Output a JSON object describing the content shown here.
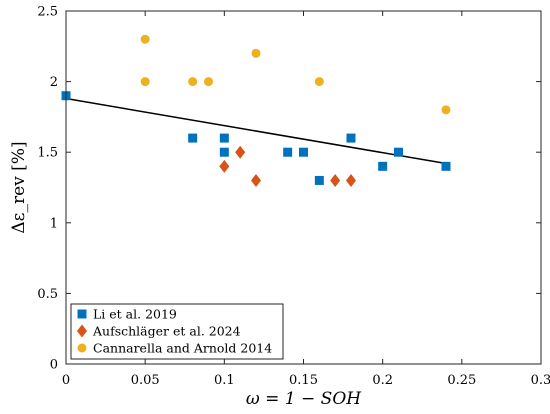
{
  "chart_data": {
    "type": "scatter",
    "xlabel": "ω = 1 − SOH",
    "ylabel": "Δε_rev [%]",
    "xlim": [
      0,
      0.3
    ],
    "ylim": [
      0,
      2.5
    ],
    "xticks": [
      0,
      0.05,
      0.1,
      0.15,
      0.2,
      0.25,
      0.3
    ],
    "xtick_labels": [
      "0",
      "0.05",
      "0.1",
      "0.15",
      "0.2",
      "0.25",
      "0.3"
    ],
    "yticks": [
      0,
      0.5,
      1,
      1.5,
      2,
      2.5
    ],
    "ytick_labels": [
      "0",
      "0.5",
      "1",
      "1.5",
      "2",
      "2.5"
    ],
    "grid": false,
    "legend_position": "bottom-left",
    "series": [
      {
        "name": "Li et al. 2019",
        "marker": "square",
        "color": "#0072BD",
        "x": [
          0,
          0.08,
          0.1,
          0.1,
          0.14,
          0.15,
          0.16,
          0.18,
          0.2,
          0.21,
          0.24
        ],
        "y": [
          1.9,
          1.6,
          1.6,
          1.5,
          1.5,
          1.5,
          1.3,
          1.6,
          1.4,
          1.5,
          1.4
        ]
      },
      {
        "name": "Aufschläger et al. 2024",
        "marker": "diamond",
        "color": "#D95319",
        "x": [
          0.1,
          0.11,
          0.12,
          0.17,
          0.18
        ],
        "y": [
          1.4,
          1.5,
          1.3,
          1.3,
          1.3
        ]
      },
      {
        "name": "Cannarella and Arnold 2014",
        "marker": "circle",
        "color": "#EDB120",
        "x": [
          0.05,
          0.05,
          0.08,
          0.09,
          0.12,
          0.16,
          0.24
        ],
        "y": [
          2.3,
          2.0,
          2.0,
          2.0,
          2.2,
          2.0,
          1.8
        ]
      }
    ],
    "fit_line": {
      "color": "#000000",
      "x": [
        0,
        0.24
      ],
      "y": [
        1.88,
        1.42
      ]
    }
  }
}
